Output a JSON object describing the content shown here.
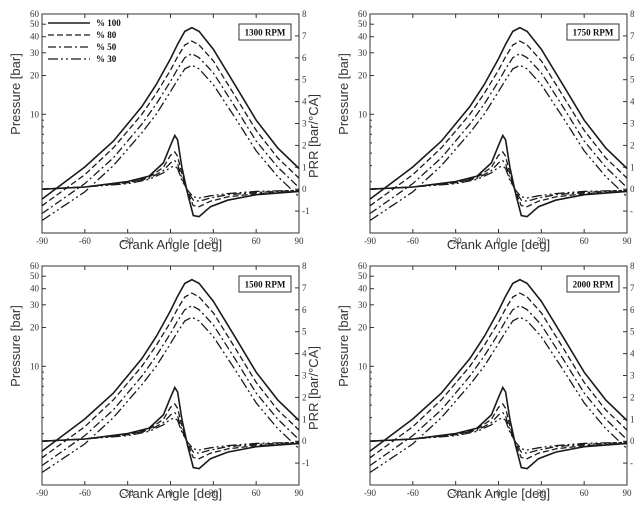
{
  "chart_data": [
    {
      "type": "line",
      "title": "1300 RPM",
      "xlabel": "Crank Angle [deg]",
      "ylabel": "Pressure [bar]",
      "y2label": "PRR [bar/°CA]",
      "xlim": [
        -90,
        90
      ],
      "xticks": [
        "-90",
        "-60",
        "-30",
        "0",
        "30",
        "60",
        "90"
      ],
      "yticks": [
        "60",
        "50",
        "40",
        "30",
        "20",
        "10"
      ],
      "y2ticks": [
        "8",
        "7",
        "6",
        "5",
        "4",
        "3",
        "2",
        "1",
        "0",
        "-1"
      ],
      "legend": [
        "% 100",
        "% 80",
        "% 50",
        "% 30"
      ],
      "pressure": {
        "x": [
          -90,
          -60,
          -40,
          -20,
          -10,
          0,
          5,
          10,
          15,
          20,
          30,
          45,
          60,
          75,
          90
        ],
        "series": [
          {
            "name": "% 100",
            "values": [
              2.2,
              3.9,
              6.2,
              11.5,
              17,
              27,
              35,
              44,
              47,
              44,
              32,
              17,
              9,
              5.5,
              3.8
            ]
          },
          {
            "name": "% 80",
            "values": [
              1.95,
              3.4,
              5.5,
              10,
              14.5,
              22,
              28,
              34.5,
              37,
              34.5,
              26,
              14,
              7.5,
              4.6,
              3.2
            ]
          },
          {
            "name": "% 50",
            "values": [
              1.7,
              2.9,
              4.6,
              8.4,
              12,
              18,
              22.5,
              27.5,
              29.5,
              27.5,
              21,
              11.5,
              6.2,
              3.9,
              2.7
            ]
          },
          {
            "name": "% 30",
            "values": [
              1.5,
              2.5,
              4,
              7.2,
              10,
              15,
              18.5,
              22.5,
              24,
              22.5,
              17,
              9.5,
              5.2,
              3.3,
              2.3
            ]
          }
        ]
      },
      "prr": {
        "x": [
          -90,
          -60,
          -30,
          -15,
          -5,
          0,
          3,
          5,
          8,
          12,
          16,
          20,
          28,
          40,
          60,
          90
        ],
        "series": [
          {
            "name": "% 100",
            "values": [
              0,
              0.1,
              0.35,
              0.6,
              1.2,
              2.0,
              2.45,
              2.25,
              1.0,
              -0.2,
              -1.2,
              -1.25,
              -0.8,
              -0.5,
              -0.25,
              -0.1
            ]
          },
          {
            "name": "% 80",
            "values": [
              0,
              0.1,
              0.3,
              0.55,
              1.0,
              1.55,
              1.7,
              1.5,
              0.7,
              -0.15,
              -0.75,
              -0.8,
              -0.55,
              -0.35,
              -0.2,
              -0.1
            ]
          },
          {
            "name": "% 50",
            "values": [
              0,
              0.1,
              0.3,
              0.5,
              0.85,
              1.2,
              1.3,
              1.15,
              0.5,
              -0.1,
              -0.5,
              -0.55,
              -0.4,
              -0.25,
              -0.15,
              -0.05
            ]
          },
          {
            "name": "% 30",
            "values": [
              0,
              0.1,
              0.25,
              0.45,
              0.75,
              1.0,
              1.05,
              0.95,
              0.4,
              -0.05,
              -0.35,
              -0.4,
              -0.3,
              -0.2,
              -0.1,
              -0.05
            ]
          }
        ]
      }
    },
    {
      "type": "line",
      "title": "1750 RPM",
      "xlabel": "Crank Angle [deg]",
      "ylabel": "Pressure [bar]",
      "y2label": "PRR [bar/°CA]",
      "xlim": [
        -90,
        90
      ],
      "xticks": [
        "-90",
        "-60",
        "-30",
        "0",
        "30",
        "60",
        "90"
      ],
      "yticks": [
        "60",
        "50",
        "40",
        "30",
        "20",
        "10"
      ],
      "y2ticks": [
        "8",
        "7",
        "6",
        "5",
        "4",
        "3",
        "2",
        "1",
        "0",
        "-1"
      ],
      "pressure": {
        "x": [
          -90,
          -60,
          -40,
          -20,
          -10,
          0,
          5,
          10,
          15,
          20,
          30,
          45,
          60,
          75,
          90
        ],
        "series": [
          {
            "name": "% 100",
            "values": [
              2.2,
              3.9,
              6.2,
              11.5,
              17,
              27,
              35,
              44,
              47,
              44,
              32,
              17,
              9,
              5.5,
              3.8
            ]
          },
          {
            "name": "% 80",
            "values": [
              1.95,
              3.4,
              5.5,
              10,
              14.5,
              22,
              28,
              34.5,
              37,
              34.5,
              26,
              14,
              7.5,
              4.6,
              3.2
            ]
          },
          {
            "name": "% 50",
            "values": [
              1.7,
              2.9,
              4.6,
              8.4,
              12,
              18,
              22.5,
              27.5,
              29.5,
              27.5,
              21,
              11.5,
              6.2,
              3.9,
              2.7
            ]
          },
          {
            "name": "% 30",
            "values": [
              1.5,
              2.5,
              4,
              7.2,
              10,
              15,
              18.5,
              22.5,
              24,
              22.5,
              17,
              9.5,
              5.2,
              3.3,
              2.3
            ]
          }
        ]
      },
      "prr": {
        "x": [
          -90,
          -60,
          -30,
          -15,
          -5,
          0,
          3,
          5,
          8,
          12,
          16,
          20,
          28,
          40,
          60,
          90
        ],
        "series": [
          {
            "name": "% 100",
            "values": [
              0,
              0.1,
              0.35,
              0.6,
              1.2,
              2.0,
              2.45,
              2.25,
              1.0,
              -0.2,
              -1.2,
              -1.25,
              -0.8,
              -0.5,
              -0.25,
              -0.1
            ]
          },
          {
            "name": "% 80",
            "values": [
              0,
              0.1,
              0.3,
              0.55,
              1.0,
              1.55,
              1.7,
              1.5,
              0.7,
              -0.15,
              -0.75,
              -0.8,
              -0.55,
              -0.35,
              -0.2,
              -0.1
            ]
          },
          {
            "name": "% 50",
            "values": [
              0,
              0.1,
              0.3,
              0.5,
              0.85,
              1.2,
              1.3,
              1.15,
              0.5,
              -0.1,
              -0.5,
              -0.55,
              -0.4,
              -0.25,
              -0.15,
              -0.05
            ]
          },
          {
            "name": "% 30",
            "values": [
              0,
              0.1,
              0.25,
              0.45,
              0.75,
              1.0,
              1.05,
              0.95,
              0.4,
              -0.05,
              -0.35,
              -0.4,
              -0.3,
              -0.2,
              -0.1,
              -0.05
            ]
          }
        ]
      }
    },
    {
      "type": "line",
      "title": "1500 RPM",
      "xlabel": "Crank Angle [deg]",
      "ylabel": "Pressure [bar]",
      "y2label": "PRR [bar/°CA]",
      "xlim": [
        -90,
        90
      ],
      "xticks": [
        "-90",
        "-60",
        "-30",
        "0",
        "30",
        "60",
        "90"
      ],
      "yticks": [
        "60",
        "50",
        "40",
        "30",
        "20",
        "10"
      ],
      "y2ticks": [
        "8",
        "7",
        "6",
        "5",
        "4",
        "3",
        "2",
        "1",
        "0",
        "-1"
      ],
      "pressure": {
        "x": [
          -90,
          -60,
          -40,
          -20,
          -10,
          0,
          5,
          10,
          15,
          20,
          30,
          45,
          60,
          75,
          90
        ],
        "series": [
          {
            "name": "% 100",
            "values": [
              2.2,
              3.9,
              6.2,
              11.5,
              17,
              27,
              35,
              44,
              47,
              44,
              32,
              17,
              9,
              5.5,
              3.8
            ]
          },
          {
            "name": "% 80",
            "values": [
              1.95,
              3.4,
              5.5,
              10,
              14.5,
              22,
              28,
              34.5,
              37,
              34.5,
              26,
              14,
              7.5,
              4.6,
              3.2
            ]
          },
          {
            "name": "% 50",
            "values": [
              1.7,
              2.9,
              4.6,
              8.4,
              12,
              18,
              22.5,
              27.5,
              29.5,
              27.5,
              21,
              11.5,
              6.2,
              3.9,
              2.7
            ]
          },
          {
            "name": "% 30",
            "values": [
              1.5,
              2.5,
              4,
              7.2,
              10,
              15,
              18.5,
              22.5,
              24,
              22.5,
              17,
              9.5,
              5.2,
              3.3,
              2.3
            ]
          }
        ]
      },
      "prr": {
        "x": [
          -90,
          -60,
          -30,
          -15,
          -5,
          0,
          3,
          5,
          8,
          12,
          16,
          20,
          28,
          40,
          60,
          90
        ],
        "series": [
          {
            "name": "% 100",
            "values": [
              0,
              0.1,
              0.35,
              0.6,
              1.2,
              2.0,
              2.45,
              2.25,
              1.0,
              -0.2,
              -1.2,
              -1.25,
              -0.8,
              -0.5,
              -0.25,
              -0.1
            ]
          },
          {
            "name": "% 80",
            "values": [
              0,
              0.1,
              0.3,
              0.55,
              1.0,
              1.55,
              1.7,
              1.5,
              0.7,
              -0.15,
              -0.75,
              -0.8,
              -0.55,
              -0.35,
              -0.2,
              -0.1
            ]
          },
          {
            "name": "% 50",
            "values": [
              0,
              0.1,
              0.3,
              0.5,
              0.85,
              1.2,
              1.3,
              1.15,
              0.5,
              -0.1,
              -0.5,
              -0.55,
              -0.4,
              -0.25,
              -0.15,
              -0.05
            ]
          },
          {
            "name": "% 30",
            "values": [
              0,
              0.1,
              0.25,
              0.45,
              0.75,
              1.0,
              1.05,
              0.95,
              0.4,
              -0.05,
              -0.35,
              -0.4,
              -0.3,
              -0.2,
              -0.1,
              -0.05
            ]
          }
        ]
      }
    },
    {
      "type": "line",
      "title": "2000 RPM",
      "xlabel": "Crank Angle [deg]",
      "ylabel": "Pressure [bar]",
      "y2label": "PRR [bar/°CA]",
      "xlim": [
        -90,
        90
      ],
      "xticks": [
        "-90",
        "-60",
        "-30",
        "0",
        "30",
        "60",
        "90"
      ],
      "yticks": [
        "60",
        "50",
        "40",
        "30",
        "20",
        "10"
      ],
      "y2ticks": [
        "8",
        "7",
        "6",
        "5",
        "4",
        "3",
        "2",
        "1",
        "0",
        "-1"
      ],
      "pressure": {
        "x": [
          -90,
          -60,
          -40,
          -20,
          -10,
          0,
          5,
          10,
          15,
          20,
          30,
          45,
          60,
          75,
          90
        ],
        "series": [
          {
            "name": "% 100",
            "values": [
              2.2,
              3.9,
              6.2,
              11.5,
              17,
              27,
              35,
              44,
              47,
              44,
              32,
              17,
              9,
              5.5,
              3.8
            ]
          },
          {
            "name": "% 80",
            "values": [
              1.95,
              3.4,
              5.5,
              10,
              14.5,
              22,
              28,
              34.5,
              37,
              34.5,
              26,
              14,
              7.5,
              4.6,
              3.2
            ]
          },
          {
            "name": "% 50",
            "values": [
              1.7,
              2.9,
              4.6,
              8.4,
              12,
              18,
              22.5,
              27.5,
              29.5,
              27.5,
              21,
              11.5,
              6.2,
              3.9,
              2.7
            ]
          },
          {
            "name": "% 30",
            "values": [
              1.5,
              2.5,
              4,
              7.2,
              10,
              15,
              18.5,
              22.5,
              24,
              22.5,
              17,
              9.5,
              5.2,
              3.3,
              2.3
            ]
          }
        ]
      },
      "prr": {
        "x": [
          -90,
          -60,
          -30,
          -15,
          -5,
          0,
          3,
          5,
          8,
          12,
          16,
          20,
          28,
          40,
          60,
          90
        ],
        "series": [
          {
            "name": "% 100",
            "values": [
              0,
              0.1,
              0.35,
              0.6,
              1.2,
              2.0,
              2.45,
              2.25,
              1.0,
              -0.2,
              -1.2,
              -1.25,
              -0.8,
              -0.5,
              -0.25,
              -0.1
            ]
          },
          {
            "name": "% 80",
            "values": [
              0,
              0.1,
              0.3,
              0.55,
              1.0,
              1.55,
              1.7,
              1.5,
              0.7,
              -0.15,
              -0.75,
              -0.8,
              -0.55,
              -0.35,
              -0.2,
              -0.1
            ]
          },
          {
            "name": "% 50",
            "values": [
              0,
              0.1,
              0.3,
              0.5,
              0.85,
              1.2,
              1.3,
              1.15,
              0.5,
              -0.1,
              -0.5,
              -0.55,
              -0.4,
              -0.25,
              -0.15,
              -0.05
            ]
          },
          {
            "name": "% 30",
            "values": [
              0,
              0.1,
              0.25,
              0.45,
              0.75,
              1.0,
              1.05,
              0.95,
              0.4,
              -0.05,
              -0.35,
              -0.4,
              -0.3,
              -0.2,
              -0.1,
              -0.05
            ]
          }
        ]
      }
    }
  ],
  "styles": {
    "line_color": "#1a1a1a",
    "dash": [
      "",
      "6,3",
      "8,3,2,3",
      "10,3,2,3,2,3"
    ]
  }
}
